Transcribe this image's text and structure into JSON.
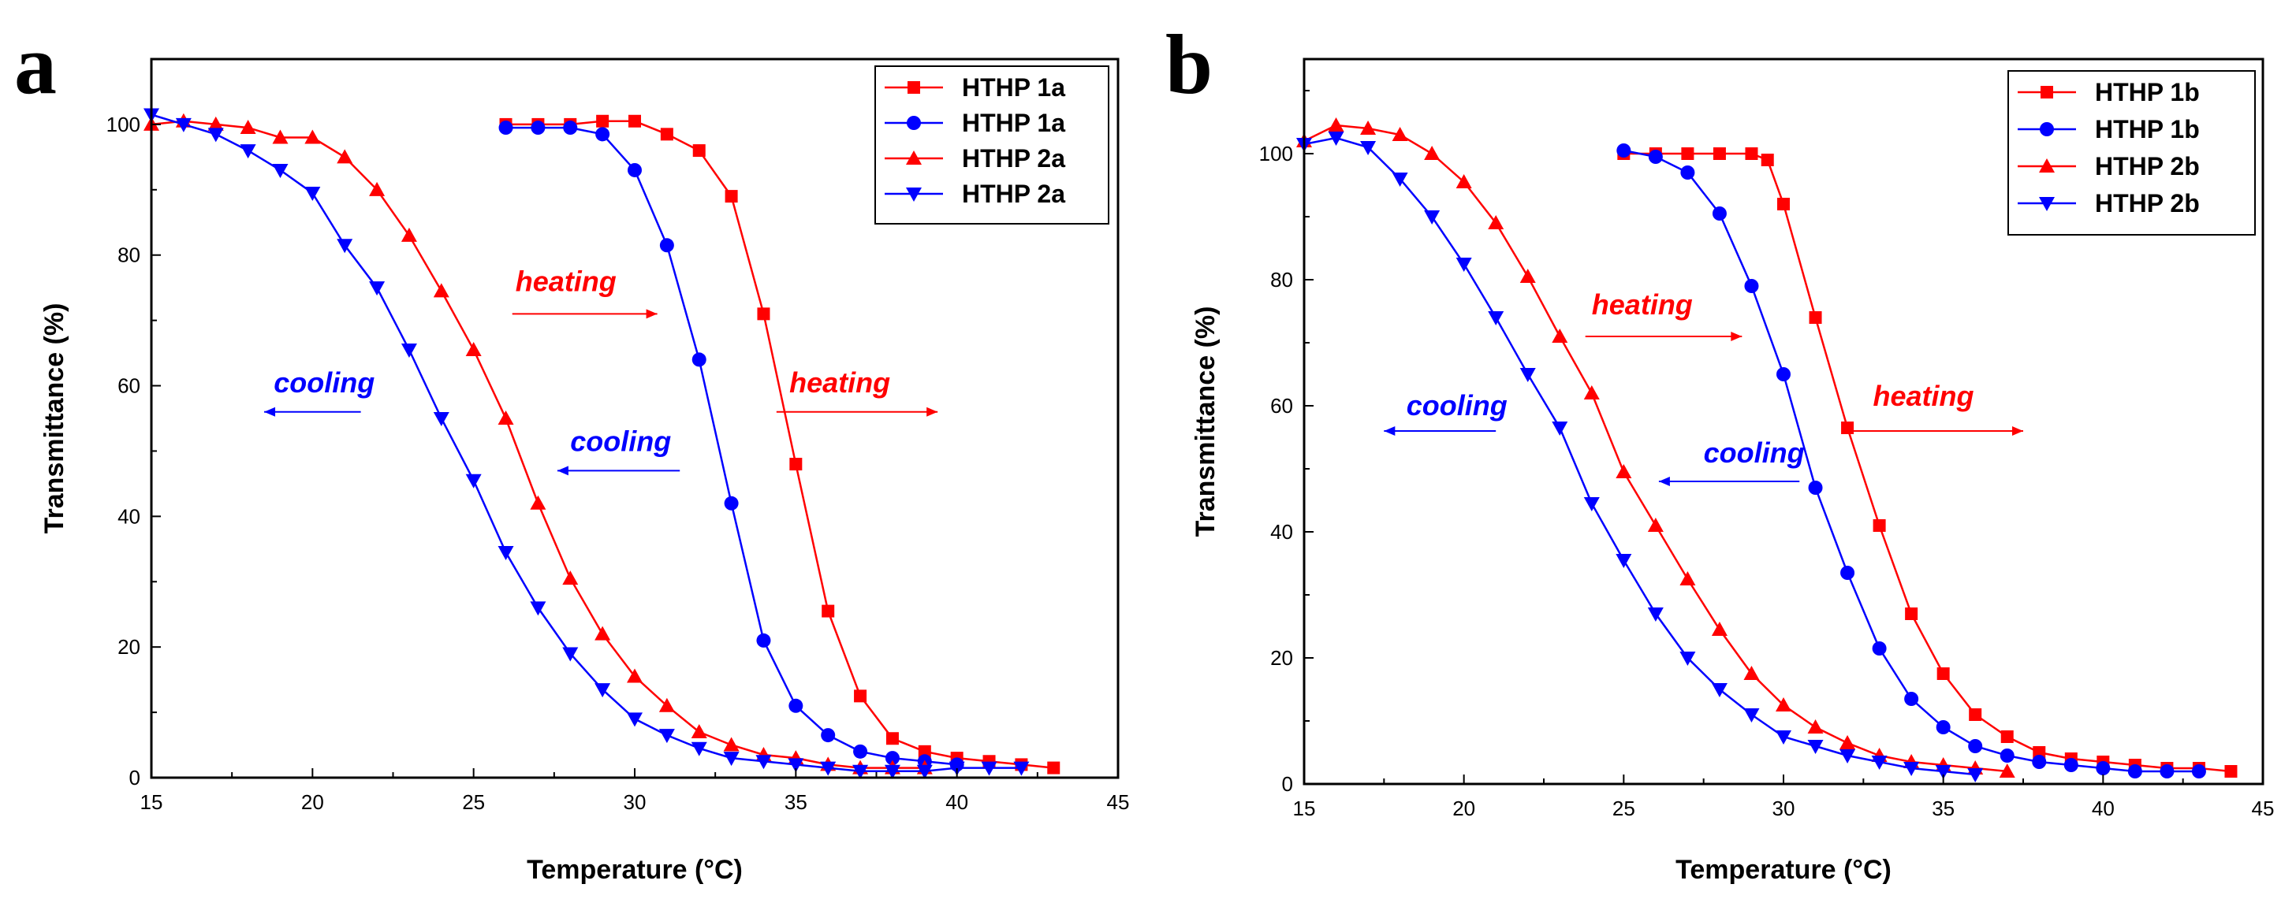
{
  "colors": {
    "heating": "#ff0000",
    "cooling": "#0000ff",
    "axis": "#000000",
    "background": "#ffffff"
  },
  "chart_data": [
    {
      "panel_label": "a",
      "type": "line",
      "xlabel": "Temperature (°C)",
      "ylabel": "Transmittance (%)",
      "xlim": [
        15,
        45
      ],
      "ylim": [
        0,
        110
      ],
      "xticks": [
        "15",
        "20",
        "25",
        "30",
        "35",
        "40",
        "45"
      ],
      "yticks": [
        "0",
        "20",
        "40",
        "60",
        "80",
        "100"
      ],
      "legend_position": "top-right",
      "series": [
        {
          "name": "HTHP 1a",
          "mode": "heating",
          "color": "#ff0000",
          "marker": "square",
          "x": [
            26,
            27,
            28,
            29,
            30,
            31,
            32,
            33,
            34,
            35,
            36,
            37,
            38,
            39,
            40,
            41,
            42,
            43
          ],
          "y": [
            100,
            100,
            100,
            100.5,
            100.5,
            98.5,
            96,
            89,
            71,
            48,
            25.5,
            12.5,
            6,
            4,
            3,
            2.5,
            2,
            1.5
          ]
        },
        {
          "name": "HTHP 1a",
          "mode": "cooling",
          "color": "#0000ff",
          "marker": "circle",
          "x": [
            26,
            27,
            28,
            29,
            30,
            31,
            32,
            33,
            34,
            35,
            36,
            37,
            38,
            39,
            40
          ],
          "y": [
            99.5,
            99.5,
            99.5,
            98.5,
            93,
            81.5,
            64,
            42,
            21,
            11,
            6.5,
            4,
            3,
            2.5,
            2
          ]
        },
        {
          "name": "HTHP 2a",
          "mode": "heating",
          "color": "#ff0000",
          "marker": "triangle-up",
          "x": [
            15,
            16,
            17,
            18,
            19,
            20,
            21,
            22,
            23,
            24,
            25,
            26,
            27,
            28,
            29,
            30,
            31,
            32,
            33,
            34,
            35,
            36,
            37,
            38,
            39
          ],
          "y": [
            100,
            100.5,
            100,
            99.5,
            98,
            98,
            95,
            90,
            83,
            74.5,
            65.5,
            55,
            42,
            30.5,
            22,
            15.5,
            11,
            7,
            5,
            3.5,
            3,
            2,
            1.5,
            1.5,
            1.5
          ]
        },
        {
          "name": "HTHP 2a",
          "mode": "cooling",
          "color": "#0000ff",
          "marker": "triangle-down",
          "x": [
            15,
            16,
            17,
            18,
            19,
            20,
            21,
            22,
            23,
            24,
            25,
            26,
            27,
            28,
            29,
            30,
            31,
            32,
            33,
            34,
            35,
            36,
            37,
            38,
            39,
            40,
            41,
            42
          ],
          "y": [
            101.5,
            100,
            98.5,
            96,
            93,
            89.5,
            81.5,
            75,
            65.5,
            55,
            45.5,
            34.5,
            26,
            19,
            13.5,
            9,
            6.5,
            4.5,
            3,
            2.5,
            2,
            1.5,
            1,
            1,
            1,
            1.5,
            1.5,
            1.5
          ]
        }
      ],
      "annotations": [
        {
          "text": "heating",
          "color": "#ff0000",
          "arrow": "right",
          "x": 26.3,
          "y": 74.5,
          "x_from": 26.2,
          "x_to": 30.7,
          "arrow_y": 71
        },
        {
          "text": "cooling",
          "color": "#0000ff",
          "arrow": "left",
          "x": 18.8,
          "y": 59,
          "x_from": 18.5,
          "x_to": 21.5,
          "arrow_y": 56
        },
        {
          "text": "heating",
          "color": "#ff0000",
          "arrow": "right",
          "x": 34.8,
          "y": 59,
          "x_from": 34.4,
          "x_to": 39.4,
          "arrow_y": 56
        },
        {
          "text": "cooling",
          "color": "#0000ff",
          "arrow": "left",
          "x": 28.0,
          "y": 50,
          "x_from": 27.6,
          "x_to": 31.4,
          "arrow_y": 47
        }
      ]
    },
    {
      "panel_label": "b",
      "type": "line",
      "xlabel": "Temperature (°C)",
      "ylabel": "Transmittance (%)",
      "xlim": [
        15,
        45
      ],
      "ylim": [
        0,
        115
      ],
      "xticks": [
        "15",
        "20",
        "25",
        "30",
        "35",
        "40",
        "45"
      ],
      "yticks": [
        "0",
        "20",
        "40",
        "60",
        "80",
        "100"
      ],
      "legend_position": "top-right",
      "series": [
        {
          "name": "HTHP 1b",
          "mode": "heating",
          "color": "#ff0000",
          "marker": "square",
          "x": [
            25,
            26,
            27,
            28,
            29,
            29.5,
            30,
            31,
            32,
            33,
            34,
            35,
            36,
            37,
            38,
            39,
            40,
            41,
            42,
            43,
            44
          ],
          "y": [
            100,
            100,
            100,
            100,
            100,
            99,
            92,
            74,
            56.5,
            41,
            27,
            17.5,
            11,
            7.5,
            5,
            4,
            3.5,
            3,
            2.5,
            2.5,
            2
          ]
        },
        {
          "name": "HTHP 1b",
          "mode": "cooling",
          "color": "#0000ff",
          "marker": "circle",
          "x": [
            25,
            26,
            27,
            28,
            29,
            30,
            31,
            32,
            33,
            34,
            35,
            36,
            37,
            38,
            39,
            40,
            41,
            42,
            43
          ],
          "y": [
            100.5,
            99.5,
            97,
            90.5,
            79,
            65,
            47,
            33.5,
            21.5,
            13.5,
            9,
            6,
            4.5,
            3.5,
            3,
            2.5,
            2,
            2,
            2
          ]
        },
        {
          "name": "HTHP 2b",
          "mode": "heating",
          "color": "#ff0000",
          "marker": "triangle-up",
          "x": [
            15,
            16,
            17,
            18,
            19,
            20,
            21,
            22,
            23,
            24,
            25,
            26,
            27,
            28,
            29,
            30,
            31,
            32,
            33,
            34,
            35,
            36,
            37
          ],
          "y": [
            102,
            104.5,
            104,
            103,
            100,
            95.5,
            89,
            80.5,
            71,
            62,
            49.5,
            41,
            32.5,
            24.5,
            17.5,
            12.5,
            9,
            6.5,
            4.5,
            3.5,
            3,
            2.5,
            2
          ]
        },
        {
          "name": "HTHP 2b",
          "mode": "cooling",
          "color": "#0000ff",
          "marker": "triangle-down",
          "x": [
            15,
            16,
            17,
            18,
            19,
            20,
            21,
            22,
            23,
            24,
            25,
            26,
            27,
            28,
            29,
            30,
            31,
            32,
            33,
            34,
            35,
            36
          ],
          "y": [
            101.5,
            102.5,
            101,
            96,
            90,
            82.5,
            74,
            65,
            56.5,
            44.5,
            35.5,
            27,
            20,
            15,
            11,
            7.5,
            6,
            4.5,
            3.5,
            2.5,
            2,
            1.5
          ]
        }
      ],
      "annotations": [
        {
          "text": "heating",
          "color": "#ff0000",
          "arrow": "right",
          "x": 24.0,
          "y": 74.5,
          "x_from": 23.8,
          "x_to": 28.7,
          "arrow_y": 71
        },
        {
          "text": "cooling",
          "color": "#0000ff",
          "arrow": "left",
          "x": 18.2,
          "y": 58.5,
          "x_from": 17.5,
          "x_to": 21.0,
          "arrow_y": 56
        },
        {
          "text": "heating",
          "color": "#ff0000",
          "arrow": "right",
          "x": 32.8,
          "y": 60,
          "x_from": 32.0,
          "x_to": 37.5,
          "arrow_y": 56
        },
        {
          "text": "cooling",
          "color": "#0000ff",
          "arrow": "left",
          "x": 27.5,
          "y": 51,
          "x_from": 26.1,
          "x_to": 30.5,
          "arrow_y": 48
        }
      ]
    }
  ]
}
